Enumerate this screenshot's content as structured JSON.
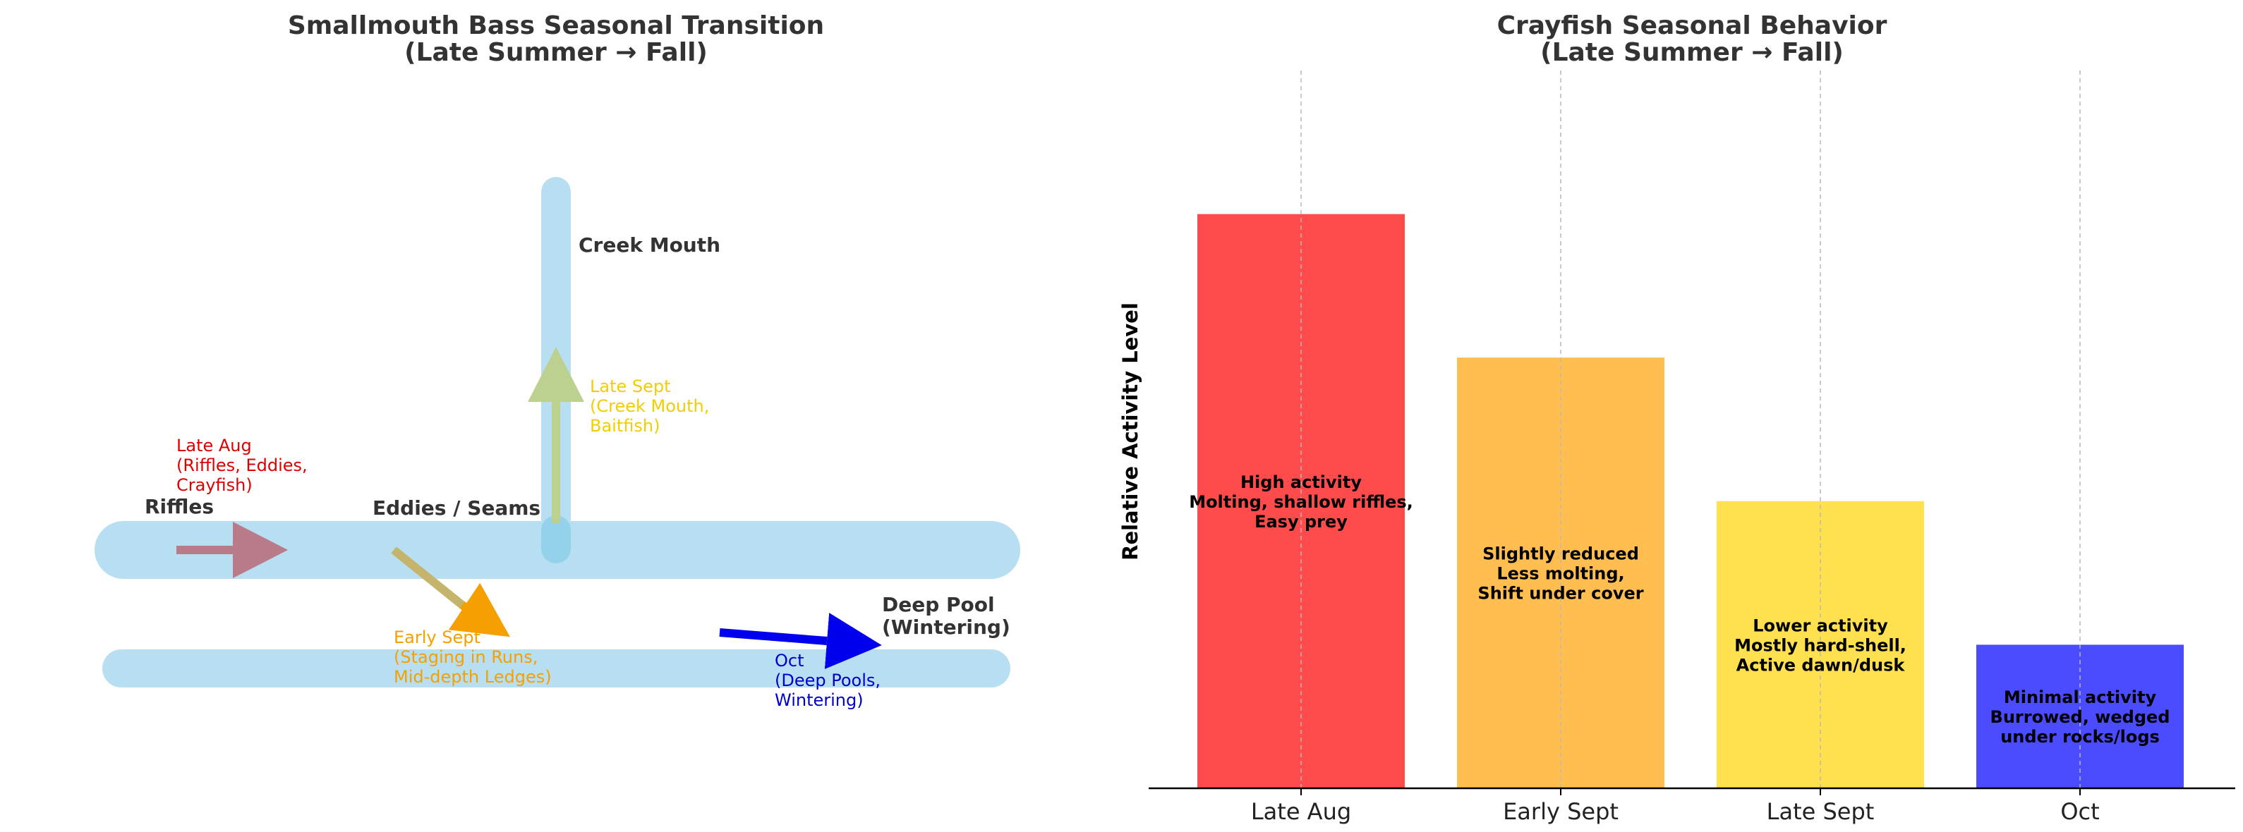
{
  "chart_data": [
    {
      "type": "diagram",
      "title": "Smallmouth Bass Seasonal Transition",
      "subtitle": "(Late Summer → Fall)",
      "locations": [
        {
          "id": "riffles",
          "label": "Riffles"
        },
        {
          "id": "eddies",
          "label": "Eddies / Seams"
        },
        {
          "id": "creek",
          "label": "Creek Mouth"
        },
        {
          "id": "deep",
          "label": "Deep Pool",
          "label2": "(Wintering)"
        }
      ],
      "stages": [
        {
          "id": "late_aug",
          "lines": [
            "Late Aug",
            "(Riffles, Eddies,",
            "Crayfish)"
          ],
          "color": "#dd0000"
        },
        {
          "id": "early_sept",
          "lines": [
            "Early Sept",
            "(Staging in Runs,",
            "Mid-depth Ledges)"
          ],
          "color": "#f5a000"
        },
        {
          "id": "late_sept",
          "lines": [
            "Late Sept",
            "(Creek Mouth,",
            "Baitfish)"
          ],
          "color": "#f2cd00"
        },
        {
          "id": "oct",
          "lines": [
            "Oct",
            "(Deep Pools,",
            "Wintering)"
          ],
          "color": "#0000cc"
        }
      ],
      "colors": {
        "water": "#b8dff1",
        "title": "#333333",
        "label": "#333333"
      }
    },
    {
      "type": "bar",
      "title": "Crayfish Seasonal Behavior",
      "subtitle": "(Late Summer → Fall)",
      "ylabel": "Relative Activity Level",
      "categories": [
        "Late Aug",
        "Early Sept",
        "Late Sept",
        "Oct"
      ],
      "values": [
        8,
        6,
        4,
        2
      ],
      "ylim": [
        0,
        10
      ],
      "grid": "x",
      "bar_labels": [
        [
          "High activity",
          "Molting, shallow riffles,",
          "Easy prey"
        ],
        [
          "Slightly reduced",
          "Less molting,",
          "Shift under cover"
        ],
        [
          "Lower activity",
          "Mostly hard-shell,",
          "Active dawn/dusk"
        ],
        [
          "Minimal activity",
          "Burrowed, wedged",
          "under rocks/logs"
        ]
      ],
      "colors": [
        "#ff4b4b",
        "#ffbe4f",
        "#ffe04f",
        "#4b4bff"
      ]
    }
  ]
}
